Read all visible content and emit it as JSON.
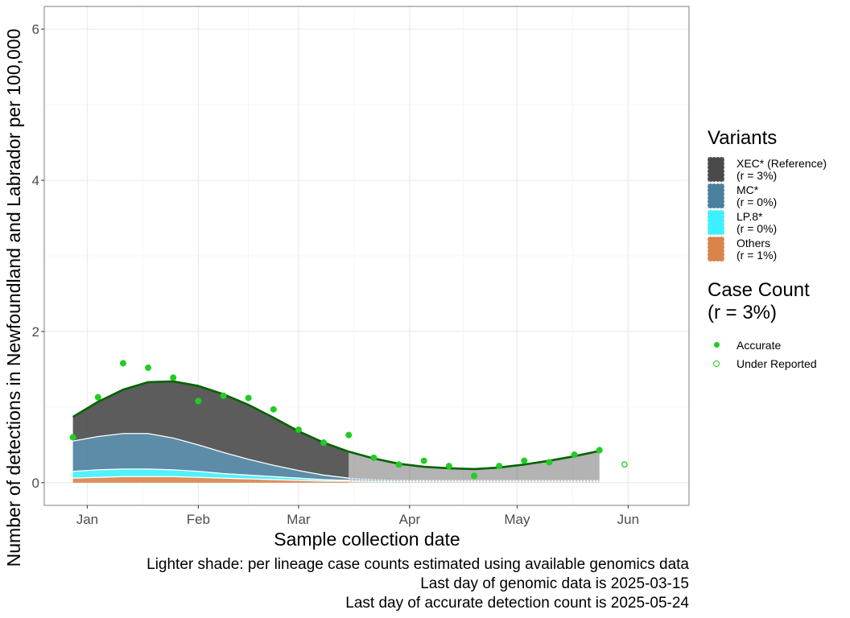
{
  "chart_data": {
    "type": "area",
    "xlabel": "Sample collection date",
    "ylabel": "Number of detections in Newfoundland and Labrador per 100,000",
    "x_ticks": [
      "Jan",
      "Feb",
      "Mar",
      "Apr",
      "May",
      "Jun"
    ],
    "x_tick_dates": [
      "2025-01-01",
      "2025-02-01",
      "2025-03-01",
      "2025-04-01",
      "2025-05-01",
      "2025-06-01"
    ],
    "xlim": [
      "2024-12-20",
      "2025-06-18"
    ],
    "y_ticks": [
      0,
      2,
      4,
      6
    ],
    "ylim": [
      -0.3,
      6.3
    ],
    "grid": true,
    "legend_position": "right",
    "genomic_cutoff": "2025-03-15",
    "x": [
      "2024-12-28",
      "2025-01-04",
      "2025-01-11",
      "2025-01-18",
      "2025-01-25",
      "2025-02-01",
      "2025-02-08",
      "2025-02-15",
      "2025-02-22",
      "2025-03-01",
      "2025-03-08",
      "2025-03-15",
      "2025-03-22",
      "2025-03-29",
      "2025-04-05",
      "2025-04-12",
      "2025-04-19",
      "2025-04-26",
      "2025-05-03",
      "2025-05-10",
      "2025-05-17",
      "2025-05-24"
    ],
    "series": [
      {
        "name": "Others",
        "color": "#d9844a",
        "values": [
          0.06,
          0.07,
          0.08,
          0.08,
          0.08,
          0.07,
          0.06,
          0.05,
          0.04,
          0.03,
          0.02,
          0.02,
          0.01,
          0.01,
          0.01,
          0.01,
          0.01,
          0.01,
          0.01,
          0.01,
          0.01,
          0.01
        ]
      },
      {
        "name": "LP.8*",
        "color": "#3ef0ff",
        "values": [
          0.09,
          0.1,
          0.1,
          0.1,
          0.09,
          0.08,
          0.06,
          0.05,
          0.04,
          0.03,
          0.02,
          0.01,
          0.01,
          0.01,
          0.01,
          0.01,
          0.01,
          0.01,
          0.01,
          0.01,
          0.01,
          0.01
        ]
      },
      {
        "name": "MC*",
        "color": "#4a7f9e",
        "values": [
          0.4,
          0.44,
          0.47,
          0.47,
          0.42,
          0.35,
          0.28,
          0.21,
          0.15,
          0.1,
          0.06,
          0.03,
          0.02,
          0.01,
          0.01,
          0.01,
          0.01,
          0.01,
          0.01,
          0.01,
          0.01,
          0.01
        ]
      },
      {
        "name": "XEC* (Reference)",
        "color": "#4a4a4a",
        "values": [
          0.32,
          0.46,
          0.58,
          0.68,
          0.75,
          0.78,
          0.77,
          0.72,
          0.63,
          0.52,
          0.43,
          0.35,
          0.28,
          0.22,
          0.18,
          0.16,
          0.15,
          0.17,
          0.21,
          0.26,
          0.32,
          0.39
        ]
      }
    ],
    "total_curve": [
      0.87,
      1.07,
      1.23,
      1.33,
      1.34,
      1.28,
      1.17,
      1.03,
      0.86,
      0.68,
      0.53,
      0.41,
      0.32,
      0.25,
      0.21,
      0.19,
      0.18,
      0.2,
      0.24,
      0.29,
      0.35,
      0.42
    ],
    "case_points": {
      "accurate": {
        "x": [
          "2024-12-28",
          "2025-01-04",
          "2025-01-11",
          "2025-01-18",
          "2025-01-25",
          "2025-02-01",
          "2025-02-08",
          "2025-02-15",
          "2025-02-22",
          "2025-03-01",
          "2025-03-08",
          "2025-03-15",
          "2025-03-22",
          "2025-03-29",
          "2025-04-05",
          "2025-04-12",
          "2025-04-19",
          "2025-04-26",
          "2025-05-03",
          "2025-05-10",
          "2025-05-17",
          "2025-05-24"
        ],
        "y": [
          0.6,
          1.13,
          1.58,
          1.52,
          1.39,
          1.08,
          1.15,
          1.12,
          0.97,
          0.7,
          0.53,
          0.63,
          0.33,
          0.24,
          0.29,
          0.22,
          0.09,
          0.22,
          0.29,
          0.27,
          0.37,
          0.43
        ]
      },
      "under_reported": {
        "x": [
          "2025-05-31"
        ],
        "y": [
          0.24
        ]
      }
    }
  },
  "legend": {
    "variants_title": "Variants",
    "variants": [
      {
        "label": "XEC* (Reference)\n(r = 3%)",
        "color": "#4a4a4a"
      },
      {
        "label": "MC*\n(r = 0%)",
        "color": "#4a7f9e"
      },
      {
        "label": "LP.8*\n(r = 0%)",
        "color": "#3ef0ff"
      },
      {
        "label": "Others\n(r = 1%)",
        "color": "#d9844a"
      }
    ],
    "case_count_title": "Case Count\n(r = 3%)",
    "accurate_label": "Accurate",
    "under_reported_label": "Under Reported"
  },
  "caption": {
    "line1": "Lighter shade: per lineage case counts estimated using available genomics data",
    "line2": "Last day of genomic data is 2025-03-15",
    "line3": "Last day of accurate detection count is 2025-05-24"
  },
  "colors": {
    "point": "#22cc22",
    "total_line": "#006400",
    "panel_border": "#7f7f7f"
  }
}
